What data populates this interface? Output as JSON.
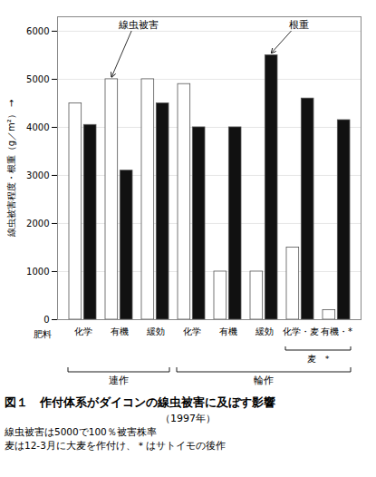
{
  "chart_data": {
    "type": "bar",
    "title": "図１　作付体系がダイコンの線虫被害に及ぼす影響",
    "subtitle": "（1997年）",
    "notes": [
      "線虫被害は5000で100％被害株率",
      "麦は12-3月に大麦を作付け、＊はサトイモの後作"
    ],
    "x_label": "肥料",
    "y_label": "線虫被害程度・根重（g／m²）",
    "categories": [
      "化学",
      "有機",
      "緩効",
      "化学",
      "有機",
      "緩効",
      "化学・麦",
      "有機・*"
    ],
    "series": [
      {
        "name": "線虫被害",
        "color": "#ffffff",
        "values": [
          4500,
          5000,
          5000,
          4900,
          1000,
          1000,
          1500,
          200
        ]
      },
      {
        "name": "根重",
        "color": "#111111",
        "values": [
          4050,
          3100,
          4500,
          4000,
          4000,
          5500,
          4600,
          4150
        ]
      }
    ],
    "ylim": [
      0,
      6300
    ],
    "yticks": [
      0,
      1000,
      2000,
      3000,
      4000,
      5000,
      6000
    ],
    "grid": true,
    "groups": [
      {
        "label": "連作",
        "from": 0,
        "to": 2
      },
      {
        "label": "輪作",
        "from": 3,
        "to": 7
      },
      {
        "label": "麦　*",
        "from": 6,
        "to": 7
      }
    ],
    "annotations": [
      {
        "text": "線虫被害",
        "series": "線虫被害",
        "index": 1
      },
      {
        "text": "根重",
        "series": "根重",
        "index": 5
      }
    ]
  }
}
